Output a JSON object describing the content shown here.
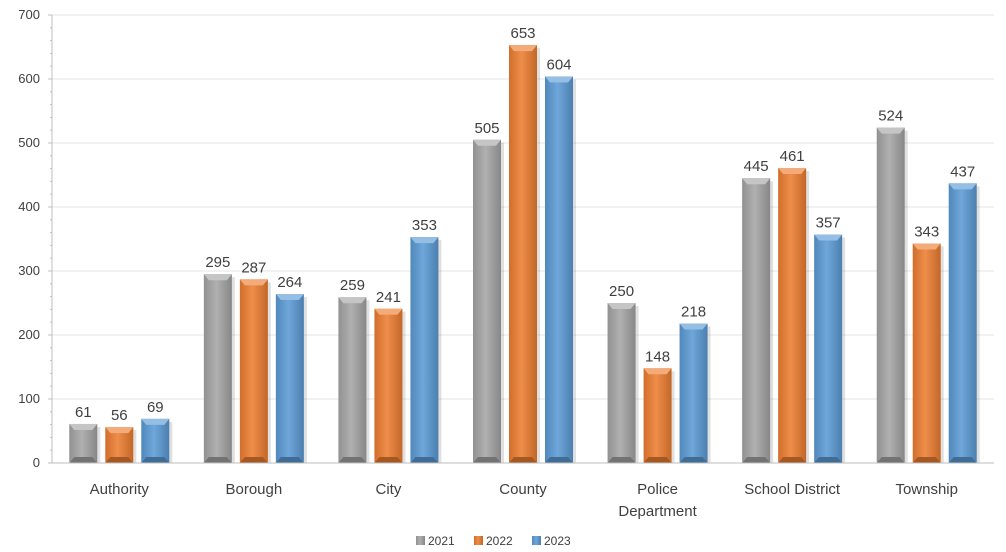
{
  "chart_data": {
    "type": "bar",
    "title": "",
    "xlabel": "",
    "ylabel": "",
    "ylim": [
      0,
      700
    ],
    "yticks": [
      0,
      100,
      200,
      300,
      400,
      500,
      600,
      700
    ],
    "grid": true,
    "legend_position": "bottom",
    "categories": [
      [
        "Authority"
      ],
      [
        "Borough"
      ],
      [
        "City"
      ],
      [
        "County"
      ],
      [
        "Police",
        "Department"
      ],
      [
        "School District"
      ],
      [
        "Township"
      ]
    ],
    "series": [
      {
        "name": "2021",
        "color": "#a5a5a5",
        "values": [
          61,
          295,
          259,
          505,
          250,
          445,
          524
        ]
      },
      {
        "name": "2022",
        "color": "#ed7d31",
        "values": [
          56,
          287,
          241,
          653,
          148,
          461,
          343
        ]
      },
      {
        "name": "2023",
        "color": "#5b9bd5",
        "values": [
          69,
          264,
          353,
          604,
          218,
          357,
          437
        ]
      }
    ]
  }
}
